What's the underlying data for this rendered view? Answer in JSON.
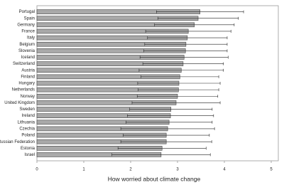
{
  "chart_data": {
    "type": "barh",
    "x_label": "How worried about climate change",
    "categories": [
      "Portugal",
      "Spain",
      "Germany",
      "France",
      "Italy",
      "Belgium",
      "Slovenia",
      "Iceland",
      "Switzerland",
      "Austria",
      "Finland",
      "Hungary",
      "Netherlands",
      "Norway",
      "United Kingdom",
      "Sweden",
      "Ireland",
      "Lithuania",
      "Czechia",
      "Poland",
      "Russian Federation",
      "Estonia",
      "Israel"
    ],
    "values": [
      3.48,
      3.44,
      3.36,
      3.23,
      3.21,
      3.18,
      3.17,
      3.14,
      3.12,
      3.08,
      3.05,
      3.03,
      3.02,
      3.0,
      2.97,
      2.86,
      2.85,
      2.82,
      2.79,
      2.76,
      2.76,
      2.67,
      2.65
    ],
    "errors": [
      0.93,
      0.86,
      0.85,
      0.91,
      0.85,
      0.88,
      0.89,
      0.94,
      0.86,
      0.9,
      0.83,
      0.88,
      0.86,
      0.86,
      0.94,
      0.88,
      0.92,
      0.92,
      1.0,
      0.92,
      0.97,
      0.94,
      1.05
    ],
    "color": "#a9a9a9",
    "xlim": [
      0,
      5
    ],
    "xticks": [
      0,
      1,
      2,
      3,
      4,
      5
    ],
    "grid": false
  }
}
